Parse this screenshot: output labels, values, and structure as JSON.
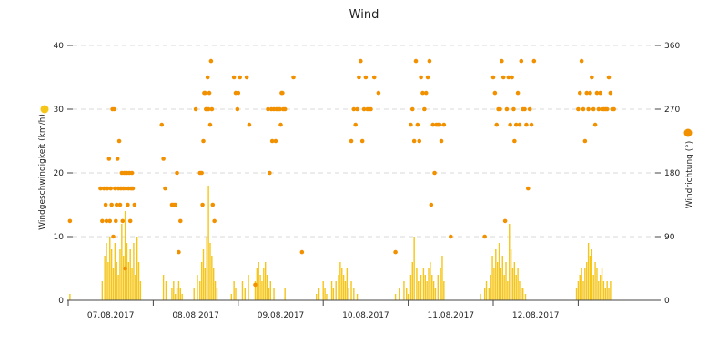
{
  "chart_data": {
    "type": "bar+scatter",
    "title": "Wind",
    "y_left": {
      "label": "Windgeschwindigkeit (km/h)",
      "ticks": [
        "0",
        "10",
        "20",
        "30",
        "40"
      ],
      "range": [
        0,
        40
      ]
    },
    "y_right": {
      "label": "Windrichtung (°)",
      "ticks": [
        "0",
        "90",
        "180",
        "270",
        "360"
      ],
      "range": [
        0,
        360
      ]
    },
    "x": {
      "day_labels": [
        "07.08.2017",
        "08.08.2017",
        "09.08.2017",
        "10.08.2017",
        "11.08.2017",
        "12.08.2017"
      ],
      "range_days": [
        -0.1,
        6.75
      ]
    },
    "grid": "horizontal dashed",
    "legend": "icons beside axis titles",
    "colors": {
      "speed": "#f5c518",
      "direction": "#f29100",
      "direction_dark": "#e07b00"
    },
    "series": [
      {
        "name": "Windgeschwindigkeit (km/h)",
        "kind": "bars",
        "axis": "left",
        "points": [
          [
            0.02,
            1
          ],
          [
            0.4,
            3
          ],
          [
            0.43,
            7
          ],
          [
            0.45,
            9
          ],
          [
            0.47,
            6
          ],
          [
            0.49,
            10
          ],
          [
            0.51,
            8
          ],
          [
            0.53,
            5
          ],
          [
            0.55,
            9
          ],
          [
            0.57,
            6
          ],
          [
            0.59,
            4
          ],
          [
            0.61,
            8
          ],
          [
            0.63,
            12
          ],
          [
            0.65,
            7
          ],
          [
            0.67,
            14
          ],
          [
            0.69,
            9
          ],
          [
            0.71,
            6
          ],
          [
            0.73,
            8
          ],
          [
            0.75,
            5
          ],
          [
            0.77,
            9
          ],
          [
            0.79,
            4
          ],
          [
            0.81,
            10
          ],
          [
            0.83,
            6
          ],
          [
            0.85,
            3
          ],
          [
            1.12,
            4
          ],
          [
            1.15,
            3
          ],
          [
            1.22,
            2
          ],
          [
            1.24,
            3
          ],
          [
            1.26,
            1
          ],
          [
            1.28,
            2
          ],
          [
            1.3,
            3
          ],
          [
            1.32,
            2
          ],
          [
            1.34,
            1
          ],
          [
            1.48,
            2
          ],
          [
            1.52,
            4
          ],
          [
            1.55,
            3
          ],
          [
            1.57,
            6
          ],
          [
            1.59,
            8
          ],
          [
            1.61,
            5
          ],
          [
            1.63,
            10
          ],
          [
            1.65,
            18
          ],
          [
            1.67,
            9
          ],
          [
            1.69,
            7
          ],
          [
            1.71,
            5
          ],
          [
            1.73,
            3
          ],
          [
            1.75,
            2
          ],
          [
            1.92,
            1
          ],
          [
            1.95,
            3
          ],
          [
            1.97,
            2
          ],
          [
            2.05,
            3
          ],
          [
            2.08,
            2
          ],
          [
            2.12,
            4
          ],
          [
            2.2,
            3
          ],
          [
            2.22,
            5
          ],
          [
            2.24,
            6
          ],
          [
            2.26,
            4
          ],
          [
            2.28,
            3
          ],
          [
            2.3,
            5
          ],
          [
            2.32,
            6
          ],
          [
            2.34,
            4
          ],
          [
            2.36,
            2
          ],
          [
            2.38,
            3
          ],
          [
            2.42,
            2
          ],
          [
            2.55,
            2
          ],
          [
            2.92,
            1
          ],
          [
            2.95,
            2
          ],
          [
            3.0,
            3
          ],
          [
            3.02,
            2
          ],
          [
            3.04,
            1
          ],
          [
            3.1,
            3
          ],
          [
            3.12,
            2
          ],
          [
            3.15,
            3
          ],
          [
            3.18,
            4
          ],
          [
            3.2,
            6
          ],
          [
            3.22,
            5
          ],
          [
            3.24,
            4
          ],
          [
            3.26,
            3
          ],
          [
            3.28,
            5
          ],
          [
            3.3,
            2
          ],
          [
            3.33,
            3
          ],
          [
            3.36,
            2
          ],
          [
            3.4,
            1
          ],
          [
            3.85,
            1
          ],
          [
            3.9,
            2
          ],
          [
            3.95,
            3
          ],
          [
            3.98,
            2
          ],
          [
            4.0,
            1
          ],
          [
            4.03,
            4
          ],
          [
            4.05,
            6
          ],
          [
            4.07,
            10
          ],
          [
            4.1,
            5
          ],
          [
            4.12,
            3
          ],
          [
            4.15,
            4
          ],
          [
            4.18,
            5
          ],
          [
            4.2,
            4
          ],
          [
            4.22,
            3
          ],
          [
            4.24,
            5
          ],
          [
            4.26,
            6
          ],
          [
            4.28,
            4
          ],
          [
            4.3,
            3
          ],
          [
            4.32,
            2
          ],
          [
            4.35,
            4
          ],
          [
            4.38,
            5
          ],
          [
            4.4,
            7
          ],
          [
            4.42,
            3
          ],
          [
            4.85,
            1
          ],
          [
            4.9,
            2
          ],
          [
            4.92,
            3
          ],
          [
            4.95,
            2
          ],
          [
            4.97,
            4
          ],
          [
            4.99,
            7
          ],
          [
            5.01,
            5
          ],
          [
            5.03,
            8
          ],
          [
            5.05,
            6
          ],
          [
            5.07,
            9
          ],
          [
            5.09,
            5
          ],
          [
            5.11,
            7
          ],
          [
            5.13,
            4
          ],
          [
            5.15,
            6
          ],
          [
            5.17,
            3
          ],
          [
            5.19,
            12
          ],
          [
            5.21,
            8
          ],
          [
            5.23,
            5
          ],
          [
            5.25,
            6
          ],
          [
            5.27,
            4
          ],
          [
            5.29,
            5
          ],
          [
            5.31,
            3
          ],
          [
            5.33,
            2
          ],
          [
            5.35,
            2
          ],
          [
            5.38,
            1
          ],
          [
            5.98,
            2
          ],
          [
            6.0,
            3
          ],
          [
            6.02,
            4
          ],
          [
            6.04,
            5
          ],
          [
            6.06,
            3
          ],
          [
            6.08,
            5
          ],
          [
            6.1,
            6
          ],
          [
            6.12,
            9
          ],
          [
            6.14,
            7
          ],
          [
            6.16,
            8
          ],
          [
            6.18,
            4
          ],
          [
            6.2,
            6
          ],
          [
            6.22,
            5
          ],
          [
            6.24,
            3
          ],
          [
            6.26,
            4
          ],
          [
            6.28,
            5
          ],
          [
            6.3,
            3
          ],
          [
            6.32,
            2
          ],
          [
            6.34,
            3
          ],
          [
            6.36,
            2
          ],
          [
            6.38,
            3
          ]
        ]
      },
      {
        "name": "Windrichtung (°)",
        "kind": "scatter",
        "axis": "right",
        "points": [
          [
            0.02,
            112
          ],
          [
            0.38,
            158
          ],
          [
            0.4,
            112
          ],
          [
            0.42,
            158
          ],
          [
            0.44,
            135
          ],
          [
            0.45,
            112
          ],
          [
            0.46,
            158
          ],
          [
            0.48,
            200
          ],
          [
            0.49,
            112
          ],
          [
            0.5,
            158
          ],
          [
            0.51,
            135
          ],
          [
            0.52,
            270
          ],
          [
            0.53,
            90
          ],
          [
            0.54,
            270
          ],
          [
            0.55,
            158
          ],
          [
            0.56,
            112
          ],
          [
            0.57,
            135
          ],
          [
            0.58,
            200
          ],
          [
            0.59,
            158
          ],
          [
            0.6,
            225
          ],
          [
            0.61,
            135
          ],
          [
            0.62,
            158
          ],
          [
            0.63,
            180
          ],
          [
            0.64,
            112
          ],
          [
            0.65,
            158
          ],
          [
            0.66,
            180
          ],
          [
            0.67,
            45
          ],
          [
            0.68,
            158
          ],
          [
            0.69,
            180
          ],
          [
            0.7,
            135
          ],
          [
            0.71,
            158
          ],
          [
            0.72,
            180
          ],
          [
            0.73,
            112
          ],
          [
            0.74,
            158
          ],
          [
            0.75,
            180
          ],
          [
            0.76,
            158
          ],
          [
            0.78,
            135
          ],
          [
            1.1,
            248
          ],
          [
            1.12,
            200
          ],
          [
            1.14,
            158
          ],
          [
            1.22,
            135
          ],
          [
            1.24,
            135
          ],
          [
            1.26,
            135
          ],
          [
            1.28,
            180
          ],
          [
            1.3,
            68
          ],
          [
            1.32,
            112
          ],
          [
            1.5,
            270
          ],
          [
            1.55,
            180
          ],
          [
            1.57,
            180
          ],
          [
            1.58,
            135
          ],
          [
            1.59,
            225
          ],
          [
            1.6,
            293
          ],
          [
            1.61,
            293
          ],
          [
            1.62,
            270
          ],
          [
            1.63,
            270
          ],
          [
            1.64,
            315
          ],
          [
            1.65,
            270
          ],
          [
            1.66,
            293
          ],
          [
            1.67,
            248
          ],
          [
            1.68,
            338
          ],
          [
            1.69,
            270
          ],
          [
            1.7,
            135
          ],
          [
            1.72,
            112
          ],
          [
            1.95,
            315
          ],
          [
            1.97,
            293
          ],
          [
            1.99,
            270
          ],
          [
            2.0,
            293
          ],
          [
            2.02,
            315
          ],
          [
            2.1,
            315
          ],
          [
            2.13,
            248
          ],
          [
            2.35,
            270
          ],
          [
            2.37,
            180
          ],
          [
            2.39,
            270
          ],
          [
            2.4,
            225
          ],
          [
            2.42,
            270
          ],
          [
            2.44,
            225
          ],
          [
            2.45,
            270
          ],
          [
            2.47,
            270
          ],
          [
            2.49,
            270
          ],
          [
            2.5,
            248
          ],
          [
            2.51,
            293
          ],
          [
            2.52,
            293
          ],
          [
            2.53,
            270
          ],
          [
            2.55,
            270
          ],
          [
            2.65,
            315
          ],
          [
            2.75,
            68
          ],
          [
            2.2,
            22
          ],
          [
            3.33,
            225
          ],
          [
            3.36,
            270
          ],
          [
            3.38,
            248
          ],
          [
            3.4,
            270
          ],
          [
            3.42,
            315
          ],
          [
            3.44,
            338
          ],
          [
            3.46,
            225
          ],
          [
            3.48,
            270
          ],
          [
            3.5,
            315
          ],
          [
            3.52,
            270
          ],
          [
            3.54,
            270
          ],
          [
            3.56,
            270
          ],
          [
            3.6,
            315
          ],
          [
            3.65,
            293
          ],
          [
            3.85,
            68
          ],
          [
            4.03,
            248
          ],
          [
            4.05,
            270
          ],
          [
            4.07,
            225
          ],
          [
            4.09,
            338
          ],
          [
            4.11,
            248
          ],
          [
            4.13,
            225
          ],
          [
            4.15,
            315
          ],
          [
            4.17,
            293
          ],
          [
            4.19,
            270
          ],
          [
            4.21,
            293
          ],
          [
            4.23,
            315
          ],
          [
            4.25,
            338
          ],
          [
            4.27,
            135
          ],
          [
            4.29,
            248
          ],
          [
            4.31,
            180
          ],
          [
            4.33,
            248
          ],
          [
            4.35,
            248
          ],
          [
            4.37,
            248
          ],
          [
            4.39,
            225
          ],
          [
            4.42,
            248
          ],
          [
            4.5,
            90
          ],
          [
            4.9,
            90
          ],
          [
            5.0,
            315
          ],
          [
            5.02,
            293
          ],
          [
            5.04,
            248
          ],
          [
            5.06,
            270
          ],
          [
            5.08,
            270
          ],
          [
            5.1,
            338
          ],
          [
            5.12,
            315
          ],
          [
            5.14,
            112
          ],
          [
            5.16,
            270
          ],
          [
            5.18,
            315
          ],
          [
            5.2,
            248
          ],
          [
            5.22,
            315
          ],
          [
            5.24,
            270
          ],
          [
            5.25,
            225
          ],
          [
            5.27,
            248
          ],
          [
            5.29,
            293
          ],
          [
            5.31,
            248
          ],
          [
            5.33,
            338
          ],
          [
            5.35,
            270
          ],
          [
            5.37,
            270
          ],
          [
            5.39,
            248
          ],
          [
            5.41,
            158
          ],
          [
            5.43,
            270
          ],
          [
            5.45,
            248
          ],
          [
            5.48,
            338
          ],
          [
            6.0,
            270
          ],
          [
            6.02,
            293
          ],
          [
            6.04,
            338
          ],
          [
            6.06,
            270
          ],
          [
            6.08,
            225
          ],
          [
            6.1,
            293
          ],
          [
            6.12,
            270
          ],
          [
            6.14,
            293
          ],
          [
            6.16,
            315
          ],
          [
            6.18,
            270
          ],
          [
            6.2,
            248
          ],
          [
            6.22,
            293
          ],
          [
            6.24,
            270
          ],
          [
            6.26,
            293
          ],
          [
            6.28,
            270
          ],
          [
            6.3,
            270
          ],
          [
            6.32,
            270
          ],
          [
            6.34,
            270
          ],
          [
            6.36,
            315
          ],
          [
            6.38,
            293
          ],
          [
            6.4,
            270
          ],
          [
            6.42,
            270
          ]
        ]
      }
    ]
  }
}
